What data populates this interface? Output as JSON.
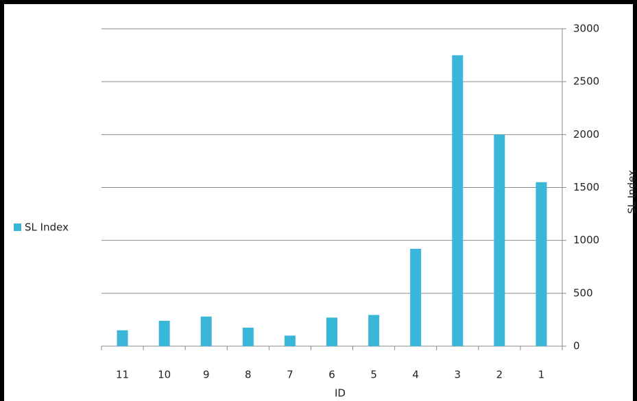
{
  "chart_data": {
    "type": "bar",
    "categories": [
      "11",
      "10",
      "9",
      "8",
      "7",
      "6",
      "5",
      "4",
      "3",
      "2",
      "1"
    ],
    "series": [
      {
        "name": "SL Index",
        "color": "#3ab6d8",
        "values": [
          150,
          240,
          280,
          175,
          100,
          270,
          295,
          920,
          2750,
          2000,
          1550
        ]
      }
    ],
    "x_label": "ID",
    "y_label": "SL Index",
    "ylim": [
      0,
      3000
    ],
    "yticks": [
      0,
      500,
      1000,
      1500,
      2000,
      2500,
      3000
    ],
    "grid": true,
    "legend": "left"
  }
}
